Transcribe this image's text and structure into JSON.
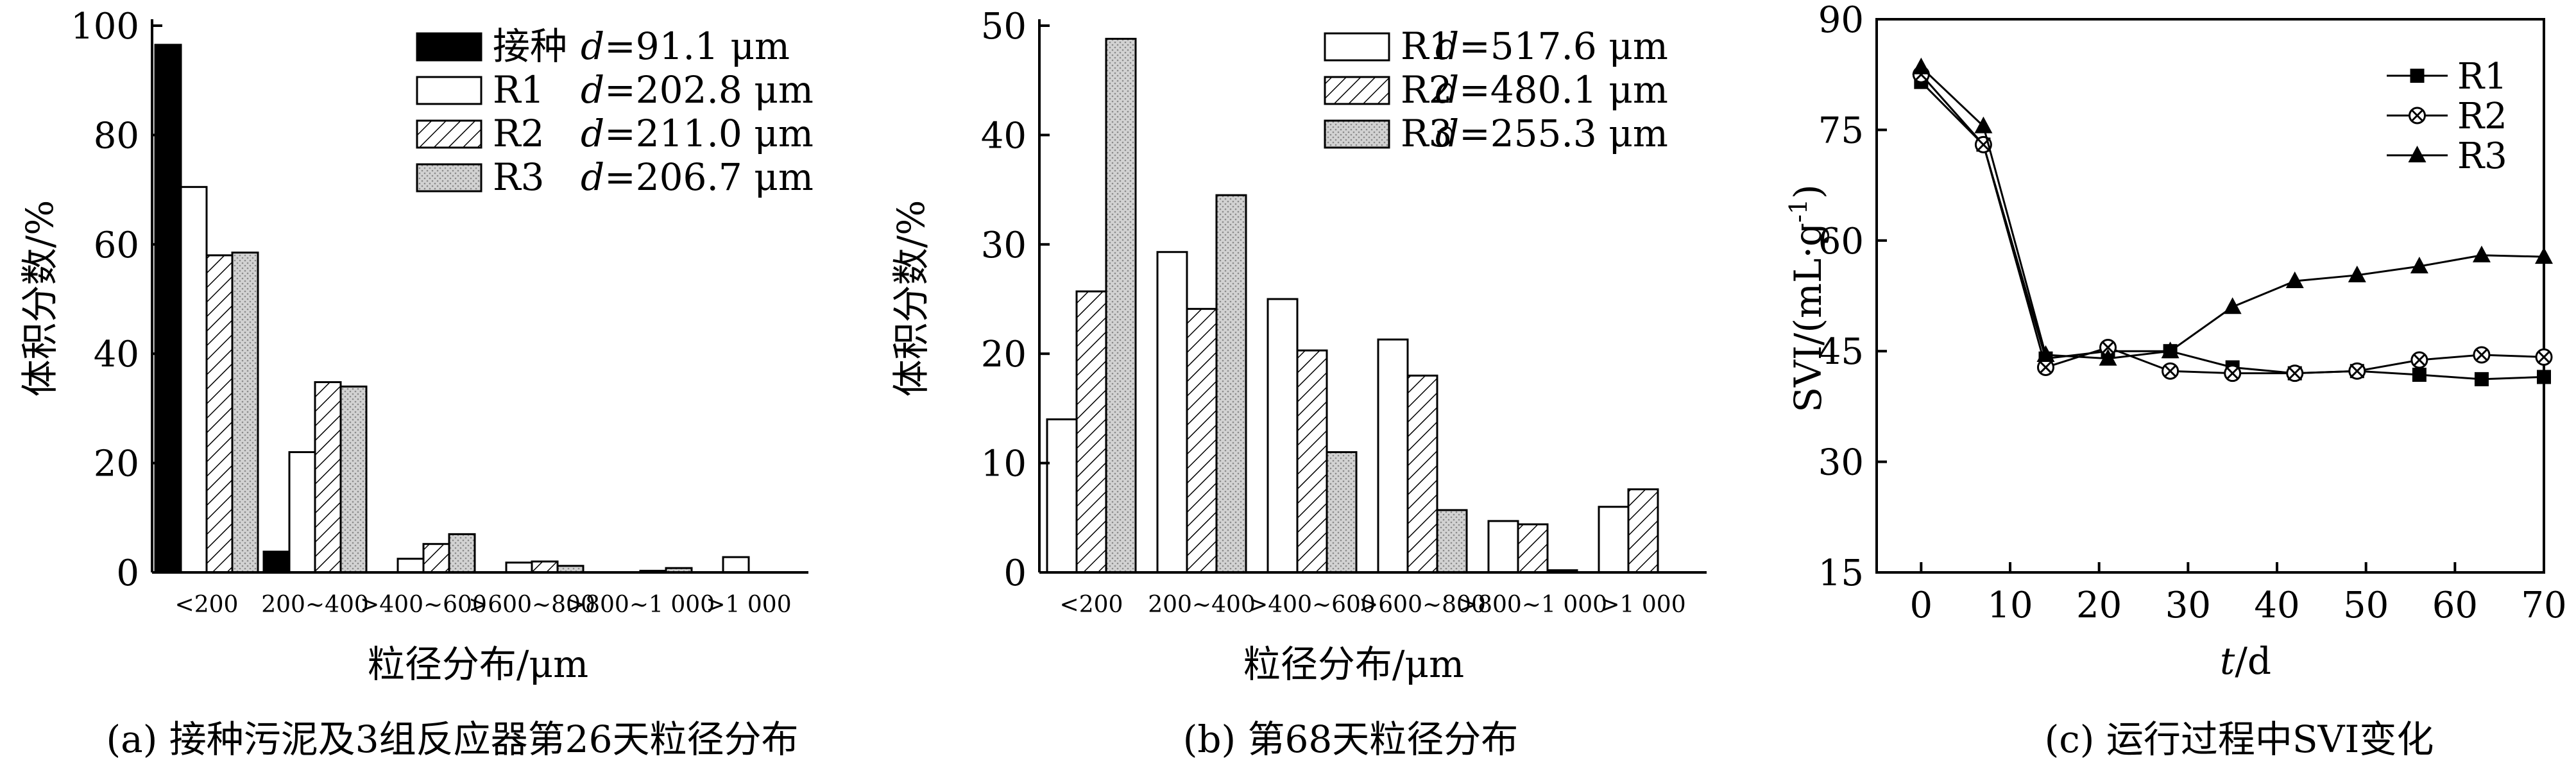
{
  "patterns": {
    "black": "#000000",
    "white": "#ffffff",
    "hatch": "#000000",
    "dots": "#9a9a9a"
  },
  "chart_data": [
    {
      "type": "bar",
      "caption": "(a) 接种污泥及3组反应器第26天粒径分布",
      "xlabel": "粒径分布/μm",
      "ylabel": "体积分数/%",
      "ylim": [
        0,
        100
      ],
      "yticks": [
        0,
        20,
        40,
        60,
        80,
        100
      ],
      "categories": [
        "<200",
        "200~400",
        ">400~600",
        ">600~800",
        ">800~1 000",
        ">1 000"
      ],
      "series": [
        {
          "name": "接种",
          "d_label": "d=91.1 μm",
          "d_prefix": "d",
          "d_value": "=91.1 μm",
          "pattern": "black",
          "values": [
            96.5,
            3.8,
            0,
            0,
            0,
            0
          ]
        },
        {
          "name": "R1",
          "d_label": "d=202.8 μm",
          "d_prefix": "d",
          "d_value": "=202.8 μm",
          "pattern": "white",
          "values": [
            70.5,
            22,
            2.5,
            1.8,
            0,
            2.8
          ]
        },
        {
          "name": "R2",
          "d_label": "d=211.0 μm",
          "d_prefix": "d",
          "d_value": "=211.0 μm",
          "pattern": "hatch",
          "values": [
            58,
            34.8,
            5.2,
            2,
            0.3,
            0
          ]
        },
        {
          "name": "R3",
          "d_label": "d=206.7 μm",
          "d_prefix": "d",
          "d_value": "=206.7 μm",
          "pattern": "dots",
          "values": [
            58.5,
            34,
            7,
            1.2,
            0.8,
            0
          ]
        }
      ],
      "legend": "top-right"
    },
    {
      "type": "bar",
      "caption": "(b) 第68天粒径分布",
      "xlabel": "粒径分布/μm",
      "ylabel": "体积分数/%",
      "ylim": [
        0,
        50
      ],
      "yticks": [
        0,
        10,
        20,
        30,
        40,
        50
      ],
      "categories": [
        "<200",
        "200~400",
        ">400~600",
        ">600~800",
        ">800~1 000",
        ">1 000"
      ],
      "series": [
        {
          "name": "R1",
          "d_label": "d=517.6 μm",
          "d_prefix": "d",
          "d_value": "=517.6 μm",
          "pattern": "white",
          "values": [
            14,
            29.3,
            25,
            21.3,
            4.7,
            6
          ]
        },
        {
          "name": "R2",
          "d_label": "d=480.1 μm",
          "d_prefix": "d",
          "d_value": "=480.1 μm",
          "pattern": "hatch",
          "values": [
            25.7,
            24.1,
            20.3,
            18,
            4.4,
            7.6
          ]
        },
        {
          "name": "R3",
          "d_label": "d=255.3 μm",
          "d_prefix": "d",
          "d_value": "=255.3 μm",
          "pattern": "dots",
          "values": [
            48.8,
            34.5,
            11,
            5.7,
            0.2,
            0
          ]
        }
      ],
      "legend": "top-right"
    },
    {
      "type": "line",
      "caption": "(c) 运行过程中SVI变化",
      "xlabel": "t/d",
      "xlabel_var": "t",
      "xlabel_unit": "/d",
      "ylabel": "SVI/(mL·g-1)",
      "ylabel_main": "SVI/(mL·g",
      "ylabel_sup": "-1",
      "ylabel_close": ")",
      "xlim": [
        -5,
        70
      ],
      "ylim": [
        15,
        90
      ],
      "xticks": [
        0,
        10,
        20,
        30,
        40,
        50,
        60,
        70
      ],
      "yticks": [
        15,
        30,
        45,
        60,
        75,
        90
      ],
      "x": [
        0,
        7,
        14,
        21,
        28,
        35,
        42,
        49,
        56,
        63,
        70
      ],
      "series": [
        {
          "name": "R1",
          "marker": "square",
          "values": [
            81.5,
            73,
            44,
            45,
            45,
            42.8,
            42,
            42.3,
            41.8,
            41.2,
            41.5
          ]
        },
        {
          "name": "R2",
          "marker": "circle-x",
          "values": [
            82.5,
            73,
            42.8,
            45.5,
            42.3,
            42,
            42,
            42.3,
            43.8,
            44.5,
            44.2
          ]
        },
        {
          "name": "R3",
          "marker": "triangle",
          "values": [
            83.5,
            75.5,
            44.5,
            44,
            45,
            51,
            54.5,
            55.3,
            56.5,
            58,
            57.8
          ]
        }
      ],
      "legend": "top-right"
    }
  ]
}
